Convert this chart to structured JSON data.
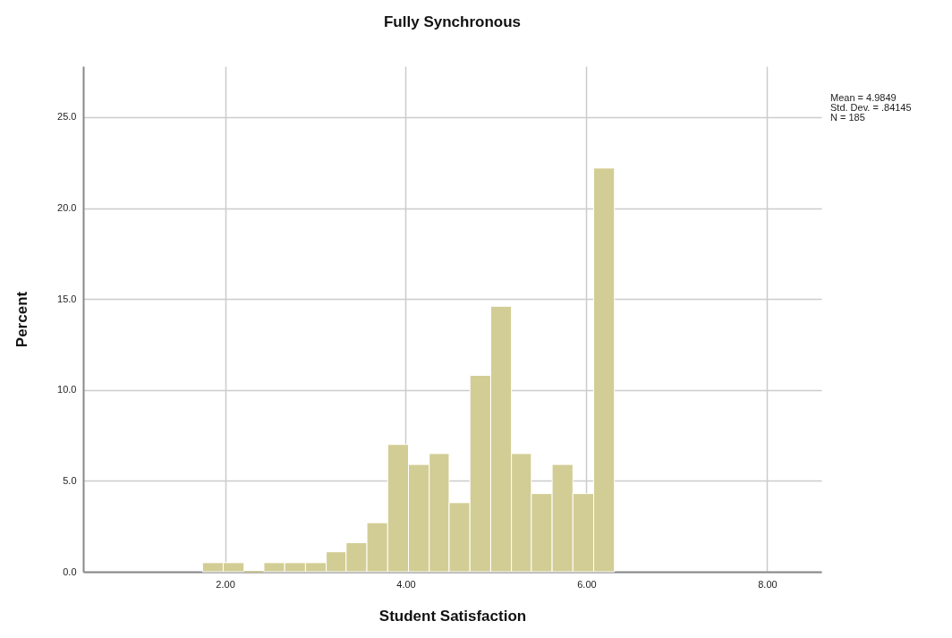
{
  "chart_data": {
    "type": "histogram",
    "title": "Fully Synchronous",
    "xlabel": "Student Satisfaction",
    "ylabel": "Percent",
    "bins": [
      1.75,
      1.98,
      2.21,
      2.43,
      2.66,
      2.89,
      3.12,
      3.34,
      3.57,
      3.8,
      4.03,
      4.26,
      4.48,
      4.71,
      4.94,
      5.17,
      5.39,
      5.62,
      5.85,
      6.08,
      6.31
    ],
    "values": [
      0.5,
      0.5,
      0,
      0.5,
      0.5,
      0.5,
      1.1,
      1.6,
      2.7,
      7.0,
      5.9,
      6.5,
      3.8,
      10.8,
      14.6,
      6.5,
      4.3,
      5.9,
      4.3,
      22.2
    ],
    "color": "#d2cd94",
    "xlim": [
      0.43,
      8.6
    ],
    "xticks": [
      {
        "value": 2,
        "label": "2.00"
      },
      {
        "value": 4,
        "label": "4.00"
      },
      {
        "value": 6,
        "label": "6.00"
      },
      {
        "value": 8,
        "label": "8.00"
      }
    ],
    "ylim": [
      0,
      27.8
    ],
    "yticks": [
      {
        "value": 0,
        "label": "0.0"
      },
      {
        "value": 5,
        "label": "5.0"
      },
      {
        "value": 10,
        "label": "10.0"
      },
      {
        "value": 15,
        "label": "15.0"
      },
      {
        "value": 20,
        "label": "20.0"
      },
      {
        "value": 25,
        "label": "25.0"
      }
    ],
    "grid": true,
    "annotations": [
      "Mean = 4.9849",
      "Std. Dev. = .84145",
      "N = 185"
    ]
  }
}
